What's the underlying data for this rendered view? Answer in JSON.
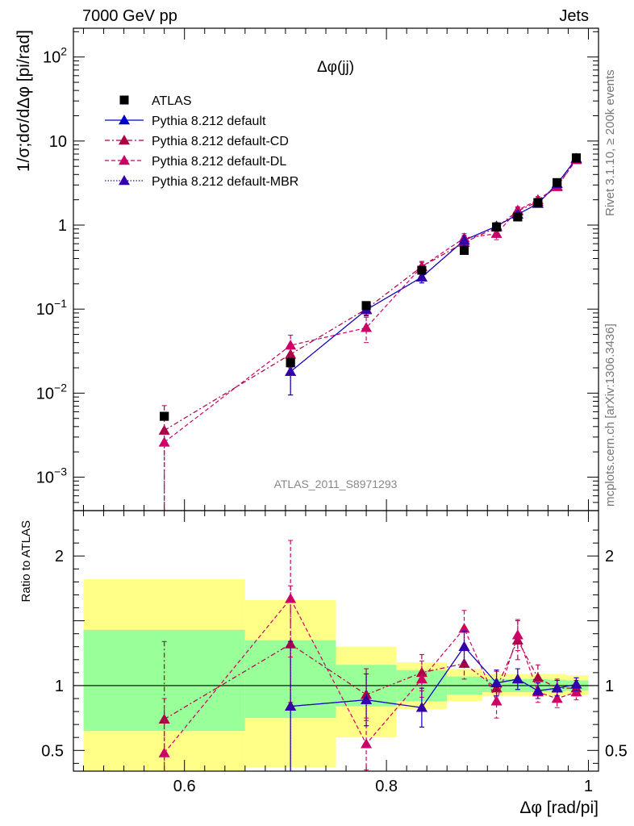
{
  "header": {
    "left": "7000 GeV pp",
    "right": "Jets",
    "side_top": "Rivet 3.1.10, ≥ 200k events",
    "side_bottom": "mcplots.cern.ch [arXiv:1306.3436]"
  },
  "chart_data": [
    {
      "type": "scatter",
      "title": "Δφ(jj)",
      "watermark": "ATLAS_2011_S8971293",
      "ylabel": "1/σ;dσ/dΔφ [pi/rad]",
      "xlabel": "",
      "yscale": "log",
      "xlim": [
        0.49,
        1.01
      ],
      "ylim": [
        0.0004,
        220
      ],
      "y_ticks": [
        {
          "value": 0.001,
          "base": "10",
          "exp": "−3"
        },
        {
          "value": 0.01,
          "base": "10",
          "exp": "−2"
        },
        {
          "value": 0.1,
          "base": "10",
          "exp": "−1"
        },
        {
          "value": 1,
          "base": "1",
          "exp": ""
        },
        {
          "value": 10,
          "base": "10",
          "exp": ""
        },
        {
          "value": 100,
          "base": "10",
          "exp": "2"
        }
      ],
      "legend_position": "top-left",
      "series": [
        {
          "name": "ATLAS",
          "kind": "data",
          "color": "#000000",
          "x": [
            0.58,
            0.705,
            0.78,
            0.835,
            0.877,
            0.909,
            0.93,
            0.95,
            0.969,
            0.988
          ],
          "y": [
            0.0053,
            0.023,
            0.11,
            0.29,
            0.5,
            0.95,
            1.25,
            1.85,
            3.2,
            6.3
          ]
        },
        {
          "name": "Pythia 8.212 default",
          "kind": "mc",
          "color": "#0000cc",
          "dash": "none",
          "x": [
            0.705,
            0.78,
            0.835,
            0.877,
            0.909,
            0.93,
            0.95,
            0.969,
            0.988
          ],
          "y": [
            0.018,
            0.098,
            0.24,
            0.66,
            0.97,
            1.34,
            1.8,
            3.1,
            6.2
          ],
          "yerr": [
            0.0085,
            0.015,
            0.035,
            0.09,
            0.1,
            0.12,
            0.15,
            0.2,
            0.3
          ]
        },
        {
          "name": "Pythia 8.212 default-CD",
          "kind": "mc",
          "color": "#aa0044",
          "dash": "6,3,2,3",
          "x": [
            0.58,
            0.705,
            0.78,
            0.835,
            0.877,
            0.909,
            0.93,
            0.95,
            0.969,
            0.988
          ],
          "y": [
            0.0036,
            0.029,
            0.1,
            0.32,
            0.62,
            0.94,
            1.47,
            1.9,
            2.9,
            6.0
          ],
          "yerr": [
            0.0035,
            0.009,
            0.015,
            0.04,
            0.08,
            0.12,
            0.15,
            0.18,
            0.25,
            0.3
          ]
        },
        {
          "name": "Pythia 8.212 default-DL",
          "kind": "mc",
          "color": "#cc0066",
          "dash": "5,3",
          "x": [
            0.58,
            0.705,
            0.78,
            0.835,
            0.877,
            0.909,
            0.93,
            0.95,
            0.969,
            0.988
          ],
          "y": [
            0.0026,
            0.037,
            0.06,
            0.32,
            0.7,
            0.79,
            1.5,
            2.0,
            2.85,
            6.0
          ],
          "yerr": [
            0.0025,
            0.012,
            0.02,
            0.05,
            0.09,
            0.12,
            0.15,
            0.18,
            0.25,
            0.3
          ]
        },
        {
          "name": "Pythia 8.212 default-MBR",
          "kind": "mc",
          "color": "#3300aa",
          "dash": "1.5,2",
          "x": [
            0.705,
            0.78,
            0.835,
            0.877,
            0.909,
            0.93,
            0.95,
            0.969,
            0.988
          ],
          "y": [
            0.018,
            0.098,
            0.24,
            0.66,
            0.97,
            1.34,
            1.8,
            3.1,
            6.2
          ],
          "yerr": [
            0.0085,
            0.015,
            0.035,
            0.09,
            0.1,
            0.12,
            0.15,
            0.2,
            0.3
          ]
        }
      ]
    },
    {
      "type": "line",
      "ylabel": "Ratio to ATLAS",
      "xlabel": "Δφ [rad/pi]",
      "xlim": [
        0.49,
        1.01
      ],
      "ylim": [
        0.34,
        2.35
      ],
      "x_ticks": [
        {
          "value": 0.6,
          "label": "0.6"
        },
        {
          "value": 0.8,
          "label": "0.8"
        },
        {
          "value": 1.0,
          "label": "1"
        }
      ],
      "y_ticks": [
        {
          "value": 0.5,
          "label": "0.5"
        },
        {
          "value": 1,
          "label": "1"
        },
        {
          "value": 2,
          "label": "2"
        }
      ],
      "bands": [
        {
          "x0": 0.5,
          "x1": 0.66,
          "green": [
            0.65,
            1.43
          ],
          "yellow": [
            0.3,
            1.82
          ]
        },
        {
          "x0": 0.66,
          "x1": 0.75,
          "green": [
            0.75,
            1.35
          ],
          "yellow": [
            0.37,
            1.66
          ]
        },
        {
          "x0": 0.75,
          "x1": 0.81,
          "green": [
            0.84,
            1.16
          ],
          "yellow": [
            0.6,
            1.3
          ]
        },
        {
          "x0": 0.81,
          "x1": 0.86,
          "green": [
            0.88,
            1.12
          ],
          "yellow": [
            0.82,
            1.18
          ]
        },
        {
          "x0": 0.86,
          "x1": 0.895,
          "green": [
            0.93,
            1.07
          ],
          "yellow": [
            0.88,
            1.13
          ]
        },
        {
          "x0": 0.895,
          "x1": 0.92,
          "green": [
            0.95,
            1.05
          ],
          "yellow": [
            0.92,
            1.09
          ]
        },
        {
          "x0": 0.92,
          "x1": 0.94,
          "green": [
            0.95,
            1.05
          ],
          "yellow": [
            0.92,
            1.09
          ]
        },
        {
          "x0": 0.94,
          "x1": 0.96,
          "green": [
            0.95,
            1.05
          ],
          "yellow": [
            0.92,
            1.09
          ]
        },
        {
          "x0": 0.96,
          "x1": 0.978,
          "green": [
            0.955,
            1.045
          ],
          "yellow": [
            0.92,
            1.09
          ]
        },
        {
          "x0": 0.978,
          "x1": 1.0,
          "green": [
            0.96,
            1.04
          ],
          "yellow": [
            0.93,
            1.08
          ]
        }
      ],
      "series": [
        {
          "name": "Pythia 8.212 default",
          "color": "#0000cc",
          "dash": "none",
          "x": [
            0.705,
            0.78,
            0.835,
            0.877,
            0.909,
            0.93,
            0.95,
            0.969,
            0.988
          ],
          "y": [
            0.84,
            0.89,
            0.83,
            1.3,
            1.02,
            1.05,
            0.96,
            0.98,
            1.01
          ],
          "yerr": [
            0.5,
            0.2,
            0.15,
            0.12,
            0.1,
            0.08,
            0.06,
            0.06,
            0.05
          ]
        },
        {
          "name": "Pythia 8.212 default-CD",
          "color": "#aa0044",
          "dash": "6,3,2,3",
          "x": [
            0.58,
            0.705,
            0.78,
            0.835,
            0.877,
            0.909,
            0.93,
            0.95,
            0.969,
            0.988
          ],
          "y": [
            0.74,
            1.32,
            0.93,
            1.1,
            1.17,
            0.98,
            1.35,
            1.06,
            0.98,
            0.98
          ],
          "yerr": [
            0.6,
            0.45,
            0.2,
            0.14,
            0.12,
            0.13,
            0.15,
            0.1,
            0.07,
            0.06
          ]
        },
        {
          "name": "Pythia 8.212 default-DL",
          "color": "#cc0066",
          "dash": "5,3",
          "x": [
            0.58,
            0.705,
            0.78,
            0.835,
            0.877,
            0.909,
            0.93,
            0.95,
            0.969,
            0.988
          ],
          "y": [
            0.48,
            1.67,
            0.55,
            1.05,
            1.44,
            0.88,
            1.39,
            0.95,
            0.9,
            0.95
          ],
          "yerr": [
            0.42,
            0.45,
            0.2,
            0.14,
            0.14,
            0.13,
            0.12,
            0.08,
            0.07,
            0.06
          ]
        },
        {
          "name": "Pythia 8.212 default-MBR",
          "color": "#3300aa",
          "dash": "1.5,2",
          "x": [
            0.705,
            0.78,
            0.835,
            0.877,
            0.909,
            0.93,
            0.95,
            0.969,
            0.988
          ],
          "y": [
            0.84,
            0.89,
            0.83,
            1.3,
            1.02,
            1.05,
            0.96,
            0.98,
            1.01
          ],
          "yerr": [
            0.5,
            0.2,
            0.15,
            0.12,
            0.1,
            0.08,
            0.06,
            0.06,
            0.05
          ]
        }
      ]
    }
  ]
}
